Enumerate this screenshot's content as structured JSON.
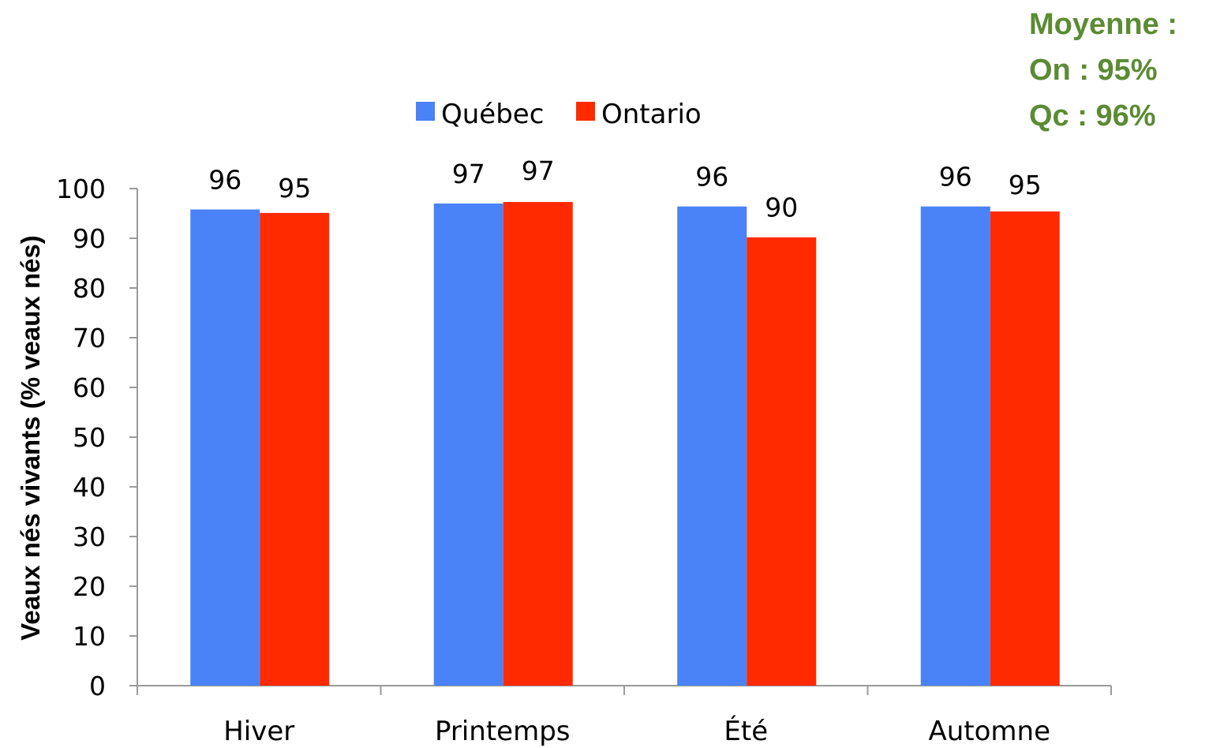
{
  "annotation": {
    "lines": [
      "Moyenne :",
      "On : 95%",
      "Qc : 96%"
    ],
    "color": "#5b8b33"
  },
  "chart_data": {
    "type": "bar",
    "categories": [
      "Hiver",
      "Printemps",
      "Été",
      "Automne"
    ],
    "series": [
      {
        "name": "Québec",
        "color": "#4a82f7",
        "values": [
          96,
          97,
          96,
          96
        ],
        "bar_values": [
          95.8,
          97.0,
          96.4,
          96.4
        ]
      },
      {
        "name": "Ontario",
        "color": "#ff2a00",
        "values": [
          95,
          97,
          90,
          95
        ],
        "bar_values": [
          95.1,
          97.3,
          90.2,
          95.4
        ]
      }
    ],
    "title": "",
    "xlabel": "",
    "ylabel": "Veaux nés vivants (% veaux nés)",
    "ylim": [
      0,
      100
    ],
    "yticks": [
      0,
      10,
      20,
      30,
      40,
      50,
      60,
      70,
      80,
      90,
      100
    ],
    "grid": false,
    "legend_position": "top-center"
  }
}
